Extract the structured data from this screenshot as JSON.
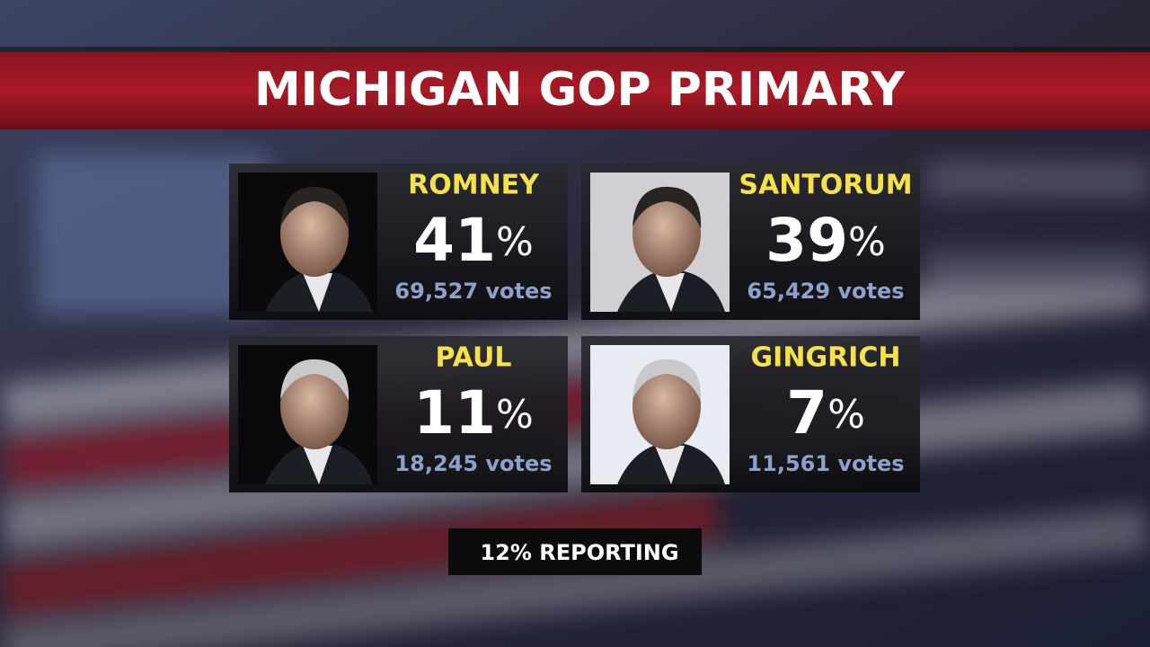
{
  "title": "MICHIGAN GOP PRIMARY",
  "candidates": [
    {
      "name": "ROMNEY",
      "percent": "41%",
      "votes": "69,527 votes"
    },
    {
      "name": "SANTORUM",
      "percent": "39%",
      "votes": "65,429 votes"
    },
    {
      "name": "PAUL",
      "percent": "11%",
      "votes": "18,245 votes"
    },
    {
      "name": "GINGRICH",
      "percent": "7%",
      "votes": "11,561 votes"
    }
  ],
  "reporting": "12% REPORTING"
}
